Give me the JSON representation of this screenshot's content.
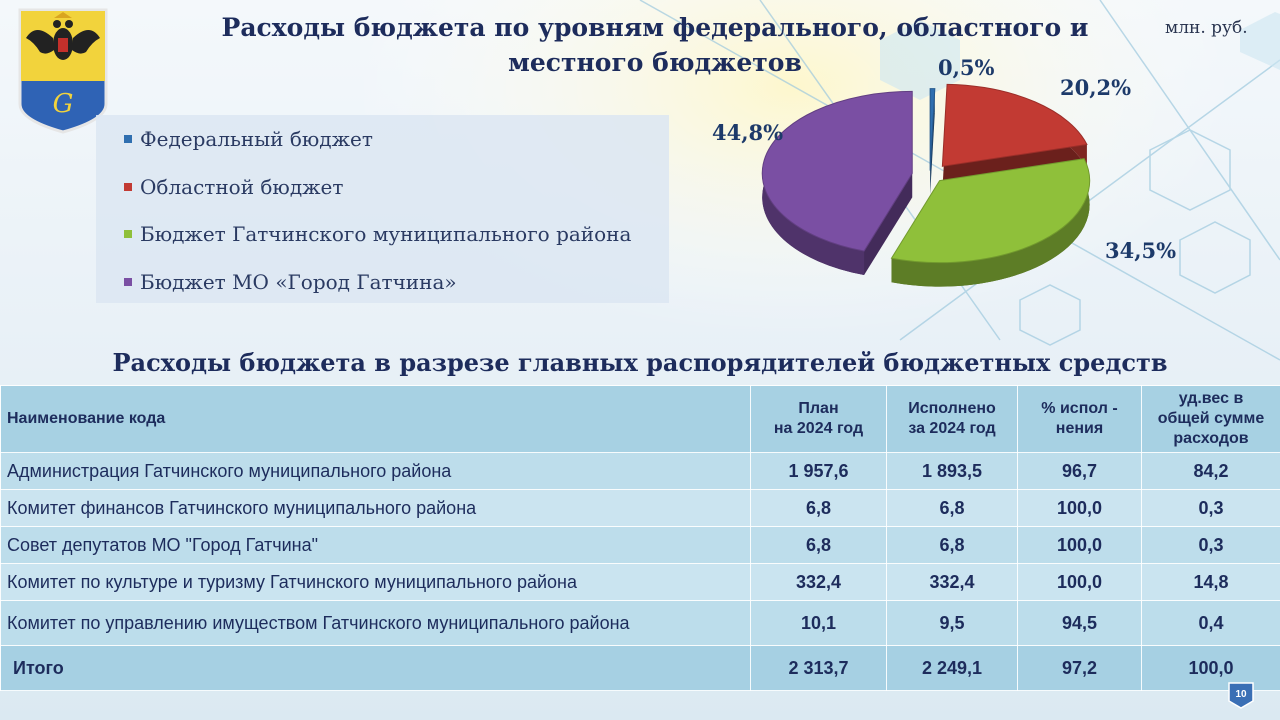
{
  "header": {
    "title": "Расходы бюджета по уровням федерального, областного и местного бюджетов",
    "units": "млн. руб."
  },
  "chart_data": {
    "type": "pie",
    "categories": [
      "Федеральный бюджет",
      "Областной бюджет",
      "Бюджет  Гатчинского муниципального района",
      "Бюджет МО «Город Гатчина»"
    ],
    "values": [
      0.5,
      20.2,
      34.5,
      44.8
    ],
    "labels": [
      "0,5%",
      "20,2%",
      "34,5%",
      "44,8%"
    ],
    "colors": [
      "#2f6fb0",
      "#c23a33",
      "#8fc03a",
      "#7a4fa3"
    ],
    "legend_position": "left"
  },
  "table": {
    "title": "Расходы бюджета в разрезе главных распорядителей бюджетных средств",
    "headers": [
      "Наименование  кода",
      "План\nна 2024 год",
      "Исполнено\nза 2024 год",
      "% испол -\nнения",
      "уд.вес в\nобщей сумме\nрасходов"
    ],
    "rows": [
      [
        "Администрация  Гатчинского  муниципального  района",
        "1 957,6",
        "1 893,5",
        "96,7",
        "84,2"
      ],
      [
        "Комитет финансов   Гатчинского  муниципального  района",
        "6,8",
        "6,8",
        "100,0",
        "0,3"
      ],
      [
        "Совет депутатов МО \"Город Гатчина\"",
        "6,8",
        "6,8",
        "100,0",
        "0,3"
      ],
      [
        "Комитет по культуре и туризму Гатчинского  муниципального  района",
        "332,4",
        "332,4",
        "100,0",
        "14,8"
      ],
      [
        "Комитет по управлению  имуществом  Гатчинского  муниципального  района",
        "10,1",
        "9,5",
        "94,5",
        "0,4"
      ]
    ],
    "total": [
      "Итого",
      "2 313,7",
      "2 249,1",
      "97,2",
      "100,0"
    ]
  },
  "footer": {
    "page_number": "10"
  }
}
